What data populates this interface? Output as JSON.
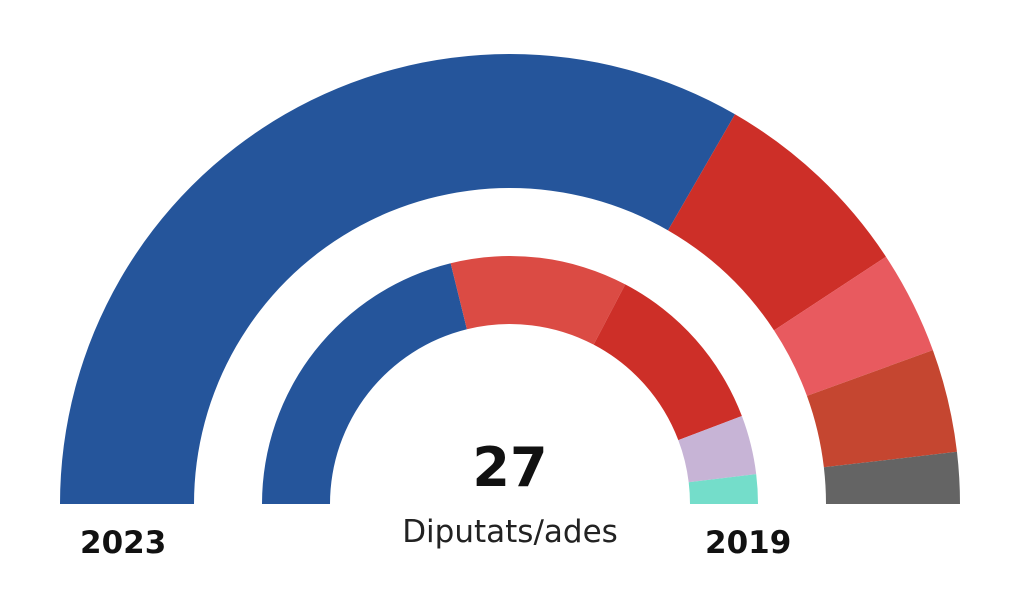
{
  "chart_data": {
    "type": "parliament_semicircle",
    "total": "27",
    "total_caption": "Diputats/ades",
    "rings": [
      {
        "year": "2023",
        "segments": [
          {
            "value": 18,
            "color": "#25559B"
          },
          {
            "value": 4,
            "color": "#CD2F28"
          },
          {
            "value": 2,
            "color": "#E85A5F"
          },
          {
            "value": 2,
            "color": "#C54630"
          },
          {
            "value": 1,
            "color": "#646464"
          }
        ]
      },
      {
        "year": "2019",
        "segments": [
          {
            "value": 11,
            "color": "#25559B"
          },
          {
            "value": 6,
            "color": "#DB4B44"
          },
          {
            "value": 6,
            "color": "#CD2F28"
          },
          {
            "value": 2,
            "color": "#C7B4D6"
          },
          {
            "value": 1,
            "color": "#74DDCA"
          }
        ]
      }
    ]
  }
}
